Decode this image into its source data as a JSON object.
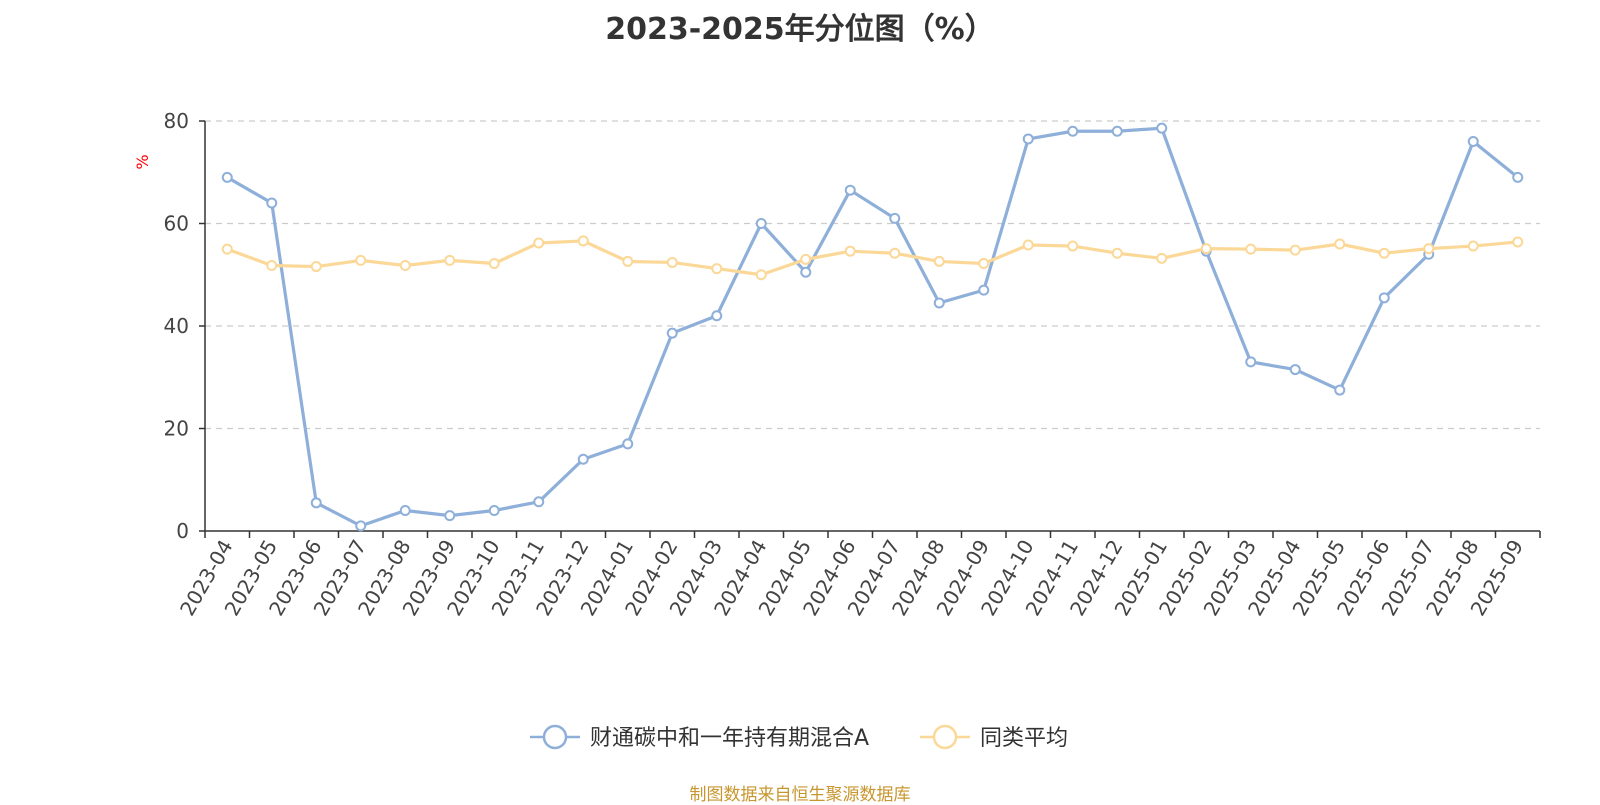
{
  "chart_data": {
    "type": "line",
    "title": "2023-2025年分位图（%）",
    "ylabel": "%",
    "xlabel": "",
    "ylim": [
      0,
      80
    ],
    "yticks": [
      0,
      20,
      40,
      60,
      80
    ],
    "grid": true,
    "legend_position": "bottom",
    "categories": [
      "2023-04",
      "2023-05",
      "2023-06",
      "2023-07",
      "2023-08",
      "2023-09",
      "2023-10",
      "2023-11",
      "2023-12",
      "2024-01",
      "2024-02",
      "2024-03",
      "2024-04",
      "2024-05",
      "2024-06",
      "2024-07",
      "2024-08",
      "2024-09",
      "2024-10",
      "2024-11",
      "2024-12",
      "2025-01",
      "2025-02",
      "2025-03",
      "2025-04",
      "2025-05",
      "2025-06",
      "2025-07",
      "2025-08",
      "2025-09"
    ],
    "series": [
      {
        "name": "财通碳中和一年持有期混合A",
        "color": "#8eafd9",
        "values": [
          69,
          64,
          5.5,
          1,
          4,
          3,
          4,
          5.7,
          14,
          17,
          38.6,
          42,
          60,
          50.5,
          66.5,
          61,
          44.5,
          47,
          76.5,
          78,
          78,
          78.6,
          54.6,
          33,
          31.5,
          27.5,
          45.5,
          54,
          76,
          69
        ]
      },
      {
        "name": "同类平均",
        "color": "#fbd897",
        "values": [
          55,
          51.8,
          51.6,
          52.8,
          51.8,
          52.8,
          52.2,
          56.2,
          56.6,
          52.6,
          52.4,
          51.2,
          50,
          53,
          54.6,
          54.2,
          52.6,
          52.2,
          55.8,
          55.6,
          54.2,
          53.2,
          55.1,
          55,
          54.8,
          56,
          54.2,
          55.1,
          55.6,
          56.4
        ]
      }
    ]
  },
  "footer": {
    "source": "制图数据来自恒生聚源数据库"
  }
}
